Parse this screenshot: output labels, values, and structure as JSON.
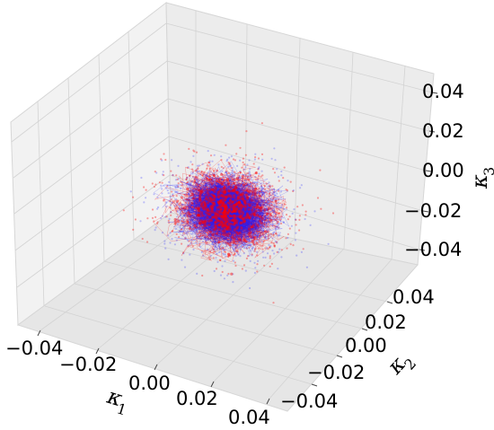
{
  "chart_data": {
    "type": "scatter",
    "projection": "3d",
    "xlabel": "κ",
    "xlabel_sub": "1",
    "ylabel": "κ",
    "ylabel_sub": "2",
    "zlabel": "κ",
    "zlabel_sub": "3",
    "xlim": [
      -0.05,
      0.05
    ],
    "ylim": [
      -0.05,
      0.05
    ],
    "zlim": [
      -0.05,
      0.05
    ],
    "xticks": [
      "−0.04",
      "−0.02",
      "0.00",
      "0.02",
      "0.04"
    ],
    "yticks": [
      "0.04",
      "0.02",
      "0.00",
      "−0.02",
      "−0.04"
    ],
    "zticks": [
      "0.04",
      "0.02",
      "0.00",
      "−0.02",
      "−0.04"
    ],
    "grid": true,
    "series": [
      {
        "color": "#ff0000",
        "distribution": "dense random trajectories centered at origin",
        "spread_sd": 0.01
      },
      {
        "color": "#2020ff",
        "distribution": "dense random trajectories centered at origin",
        "spread_sd": 0.01
      }
    ]
  }
}
